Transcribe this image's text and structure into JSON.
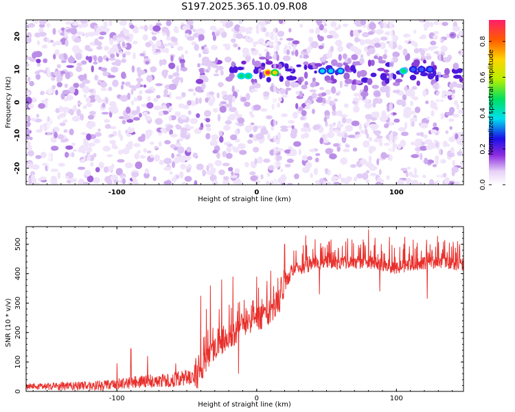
{
  "title": "S197.2025.365.10.09.R08",
  "chart_data": [
    {
      "type": "heatmap",
      "name": "spectrogram",
      "xlabel": "Height of straight line (km)",
      "ylabel": "Frequency (Hz)",
      "xlim": [
        -165,
        148
      ],
      "ylim": [
        -25,
        25
      ],
      "xticks": [
        -100,
        0,
        100
      ],
      "xtick_labels": [
        "-100",
        "0",
        "100"
      ],
      "yticks": [
        -20,
        -10,
        0,
        10,
        20
      ],
      "ytick_labels": [
        "-20",
        "-10",
        "0",
        "10",
        "20"
      ],
      "signal_band_hz": 9,
      "signal_starts_km": -20,
      "hotspots": [
        {
          "x": -11,
          "y": 8,
          "amp": 0.38
        },
        {
          "x": -6,
          "y": 8,
          "amp": 0.35
        },
        {
          "x": 8,
          "y": 9,
          "amp": 0.9
        },
        {
          "x": 13,
          "y": 9,
          "amp": 0.62
        },
        {
          "x": 47,
          "y": 9.5,
          "amp": 0.3
        },
        {
          "x": 53,
          "y": 9.5,
          "amp": 0.28
        },
        {
          "x": 60,
          "y": 9.5,
          "amp": 0.25
        },
        {
          "x": 105,
          "y": 9.5,
          "amp": 0.35
        },
        {
          "x": 112,
          "y": 10,
          "amp": 0.2
        },
        {
          "x": 118,
          "y": 10,
          "amp": 0.15
        },
        {
          "x": 124,
          "y": 10,
          "amp": 0.12
        }
      ],
      "colorbar": {
        "label": "Normalized spectral amplitude",
        "range": [
          0,
          0.92
        ],
        "ticks": [
          0,
          0.2,
          0.4,
          0.6,
          0.8
        ],
        "tick_labels": [
          "0.0",
          "0.2",
          "0.4",
          "0.6",
          "0.8"
        ]
      }
    },
    {
      "type": "line",
      "name": "snr",
      "xlabel": "Height of straight line (km)",
      "ylabel": "SNR (10 * v/v)",
      "xlim": [
        -165,
        148
      ],
      "ylim": [
        0,
        560
      ],
      "xticks": [
        -100,
        0,
        100
      ],
      "xtick_labels": [
        "-100",
        "0",
        "100"
      ],
      "yticks": [
        0,
        100,
        200,
        300,
        400,
        500
      ],
      "ytick_labels": [
        "0",
        "100",
        "200",
        "300",
        "400",
        "500"
      ],
      "color": "#e8302c",
      "baseline_profile": {
        "x": [
          -165,
          -110,
          -90,
          -60,
          -42,
          -35,
          -25,
          -15,
          -10,
          0,
          10,
          15,
          20,
          25,
          35,
          50,
          60,
          80,
          90,
          100,
          110,
          120,
          130,
          148
        ],
        "y": [
          15,
          20,
          30,
          40,
          55,
          110,
          170,
          200,
          230,
          240,
          275,
          300,
          350,
          410,
          425,
          440,
          435,
          440,
          430,
          420,
          430,
          435,
          440,
          430
        ]
      },
      "spikes": [
        {
          "x": -100,
          "y": 95
        },
        {
          "x": -90,
          "y": 145
        },
        {
          "x": -78,
          "y": 120
        },
        {
          "x": -58,
          "y": 95
        },
        {
          "x": -40,
          "y": 325
        },
        {
          "x": -36,
          "y": 280
        },
        {
          "x": -33,
          "y": 360
        },
        {
          "x": -25,
          "y": 380
        },
        {
          "x": -17,
          "y": 390
        },
        {
          "x": -13,
          "y": 60
        },
        {
          "x": 0,
          "y": 390
        },
        {
          "x": 10,
          "y": 410
        },
        {
          "x": 20,
          "y": 500
        },
        {
          "x": 35,
          "y": 530
        },
        {
          "x": 45,
          "y": 500
        },
        {
          "x": 52,
          "y": 510
        },
        {
          "x": 65,
          "y": 520
        },
        {
          "x": 80,
          "y": 550
        },
        {
          "x": 88,
          "y": 545
        },
        {
          "x": 95,
          "y": 525
        },
        {
          "x": 106,
          "y": 525
        },
        {
          "x": 115,
          "y": 505
        },
        {
          "x": 124,
          "y": 500
        },
        {
          "x": 138,
          "y": 505
        },
        {
          "x": 145,
          "y": 500
        }
      ],
      "dips": [
        {
          "x": 45,
          "y": 330
        },
        {
          "x": 88,
          "y": 340
        },
        {
          "x": 122,
          "y": 315
        }
      ]
    }
  ]
}
